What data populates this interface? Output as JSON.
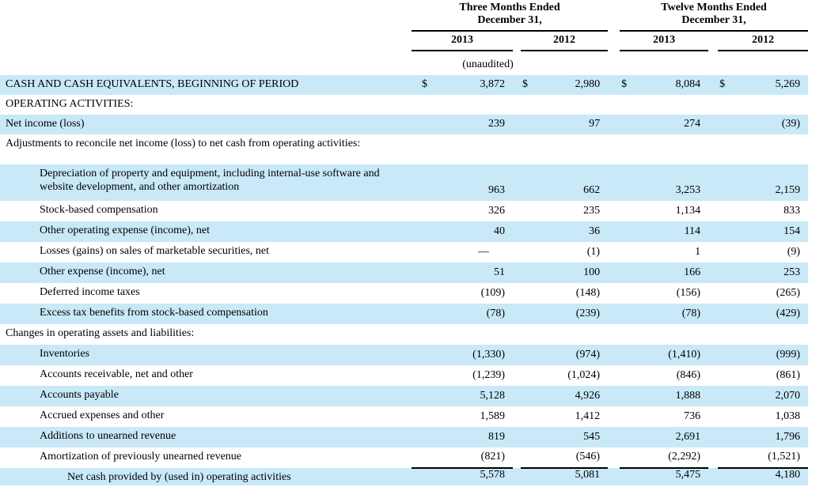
{
  "colors": {
    "row_highlight": "#c9e8f8",
    "rule_line": "#000000",
    "text": "#000000"
  },
  "table": {
    "currency_symbol": "$",
    "unaudited_note": "(unaudited)",
    "groups": [
      {
        "title": "Three Months Ended\nDecember 31,",
        "years": [
          "2013",
          "2012"
        ]
      },
      {
        "title": "Twelve Months Ended\nDecember 31,",
        "years": [
          "2013",
          "2012"
        ]
      }
    ],
    "rows": [
      {
        "label": "CASH AND CASH EQUIVALENTS, BEGINNING OF PERIOD",
        "indent": 0,
        "highlight": true,
        "dollar": true,
        "values": [
          "3,872",
          "2,980",
          "8,084",
          "5,269"
        ]
      },
      {
        "label": "OPERATING ACTIVITIES:",
        "indent": 0,
        "highlight": false,
        "values": [
          "",
          "",
          "",
          ""
        ]
      },
      {
        "label": "Net income (loss)",
        "indent": 0,
        "highlight": true,
        "values": [
          "239",
          "97",
          "274",
          "(39)"
        ]
      },
      {
        "label": "Adjustments to reconcile net income (loss) to net cash from operating activities:",
        "indent": 0,
        "highlight": false,
        "values": [
          "",
          "",
          "",
          ""
        ]
      },
      {
        "type": "spacer"
      },
      {
        "label": "Depreciation of property and equipment, including internal-use software and website development, and other amortization",
        "indent": 1,
        "highlight": true,
        "tall": true,
        "values": [
          "963",
          "662",
          "3,253",
          "2,159"
        ]
      },
      {
        "label": "Stock-based compensation",
        "indent": 1,
        "highlight": false,
        "values": [
          "326",
          "235",
          "1,134",
          "833"
        ]
      },
      {
        "label": "Other operating expense (income), net",
        "indent": 1,
        "highlight": true,
        "values": [
          "40",
          "36",
          "114",
          "154"
        ]
      },
      {
        "label": "Losses (gains) on sales of marketable securities, net",
        "indent": 1,
        "highlight": false,
        "values": [
          "—",
          "(1)",
          "1",
          "(9)"
        ]
      },
      {
        "label": "Other expense (income), net",
        "indent": 1,
        "highlight": true,
        "values": [
          "51",
          "100",
          "166",
          "253"
        ]
      },
      {
        "label": "Deferred income taxes",
        "indent": 1,
        "highlight": false,
        "values": [
          "(109)",
          "(148)",
          "(156)",
          "(265)"
        ]
      },
      {
        "label": "Excess tax benefits from stock-based compensation",
        "indent": 1,
        "highlight": true,
        "values": [
          "(78)",
          "(239)",
          "(78)",
          "(429)"
        ]
      },
      {
        "label": "Changes in operating assets and liabilities:",
        "indent": 0,
        "highlight": false,
        "values": [
          "",
          "",
          "",
          ""
        ]
      },
      {
        "label": "Inventories",
        "indent": 1,
        "highlight": true,
        "values": [
          "(1,330)",
          "(974)",
          "(1,410)",
          "(999)"
        ]
      },
      {
        "label": "Accounts receivable, net and other",
        "indent": 1,
        "highlight": false,
        "values": [
          "(1,239)",
          "(1,024)",
          "(846)",
          "(861)"
        ]
      },
      {
        "label": "Accounts payable",
        "indent": 1,
        "highlight": true,
        "values": [
          "5,128",
          "4,926",
          "1,888",
          "2,070"
        ]
      },
      {
        "label": "Accrued expenses and other",
        "indent": 1,
        "highlight": false,
        "values": [
          "1,589",
          "1,412",
          "736",
          "1,038"
        ]
      },
      {
        "label": "Additions to unearned revenue",
        "indent": 1,
        "highlight": true,
        "values": [
          "819",
          "545",
          "2,691",
          "1,796"
        ]
      },
      {
        "label": "Amortization of previously unearned revenue",
        "indent": 1,
        "highlight": false,
        "uline": true,
        "values": [
          "(821)",
          "(546)",
          "(2,292)",
          "(1,521)"
        ]
      },
      {
        "label": "Net cash provided by (used in) operating activities",
        "indent": 2,
        "highlight": true,
        "values": [
          "5,578",
          "5,081",
          "5,475",
          "4,180"
        ]
      }
    ]
  }
}
